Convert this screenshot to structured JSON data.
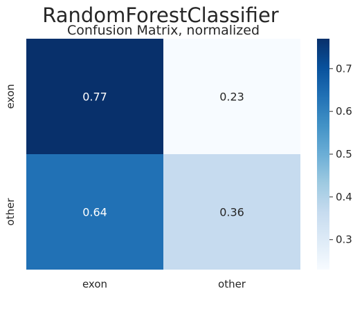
{
  "chart_data": {
    "type": "heatmap",
    "title": "RandomForestClassifier",
    "subtitle": "Confusion Matrix, normalized",
    "rows": [
      "exon",
      "other"
    ],
    "columns": [
      "exon",
      "other"
    ],
    "values": [
      [
        0.77,
        0.23
      ],
      [
        0.64,
        0.36
      ]
    ],
    "value_labels": [
      [
        "0.77",
        "0.23"
      ],
      [
        "0.64",
        "0.36"
      ]
    ],
    "colormap": "Blues",
    "colorbar": {
      "range": [
        0.23,
        0.77
      ],
      "ticks": [
        0.3,
        0.4,
        0.5,
        0.6,
        0.7
      ],
      "tick_labels": [
        "0.3",
        "0.4",
        "0.5",
        "0.6",
        "0.7"
      ]
    },
    "cell_colors": [
      [
        "#08306b",
        "#f7fbff"
      ],
      [
        "#2171b5",
        "#c6dbef"
      ]
    ],
    "text_colors": [
      [
        "#ffffff",
        "#262626"
      ],
      [
        "#ffffff",
        "#262626"
      ]
    ]
  }
}
